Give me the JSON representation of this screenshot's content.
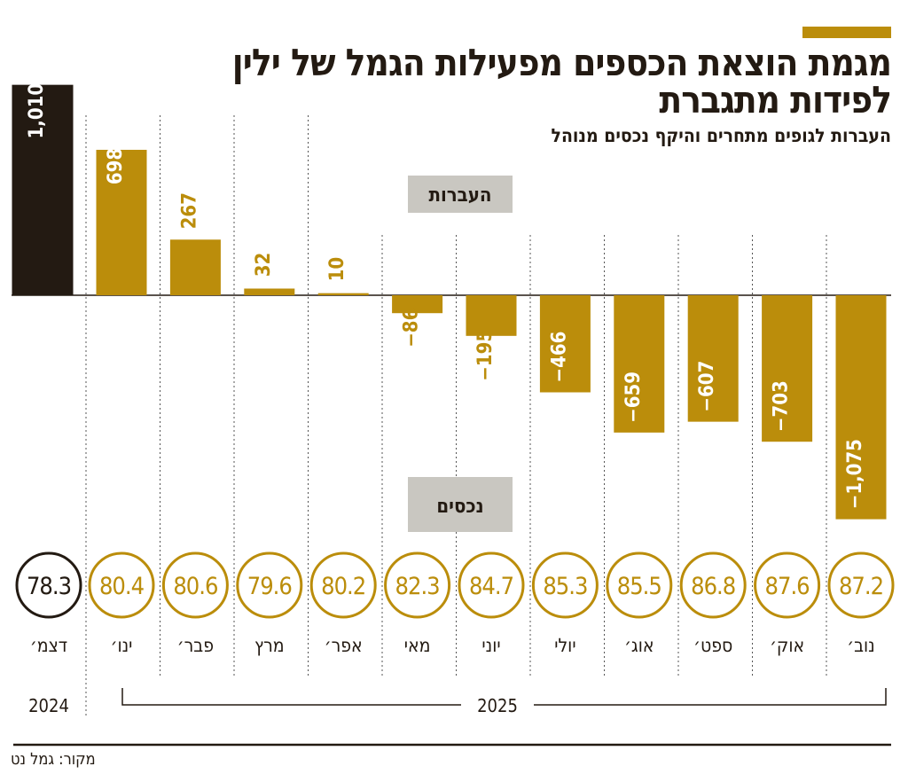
{
  "title": "מגמת הוצאת הכספים מפעילות הגמל של ילין לפידות מתגברת",
  "subtitle": "העברות לגופים מתחרים והיקף נכסים מנוהל",
  "source": "מקור: גמל נט",
  "colors": {
    "accent": "#bb8d0b",
    "highlight": "#231a12",
    "label_box": "#c9c7c1"
  },
  "chart_data": {
    "type": "bar",
    "categories": [
      "דצמ׳",
      "ינו׳",
      "פבר׳",
      "מרץ",
      "אפר׳",
      "מאי",
      "יוני",
      "יולי",
      "אוג׳",
      "ספט׳",
      "אוק׳",
      "נוב׳"
    ],
    "years": [
      {
        "label": "2024",
        "span": [
          "דצמ׳",
          "דצמ׳"
        ]
      },
      {
        "label": "2025",
        "span": [
          "ינו׳",
          "נוב׳"
        ]
      }
    ],
    "series": [
      {
        "name": "העברות",
        "values": [
          1010,
          698,
          267,
          32,
          10,
          -86,
          -195,
          -466,
          -659,
          -607,
          -703,
          -1075
        ],
        "labels": [
          "1,010",
          "698",
          "267",
          "32",
          "10",
          "−86",
          "−195",
          "−466",
          "−659",
          "−607",
          "−703",
          "−1,075"
        ]
      },
      {
        "name": "נכסים",
        "values": [
          78.3,
          80.4,
          80.6,
          79.6,
          80.2,
          82.3,
          84.7,
          85.3,
          85.5,
          86.8,
          87.6,
          87.2
        ]
      }
    ]
  }
}
